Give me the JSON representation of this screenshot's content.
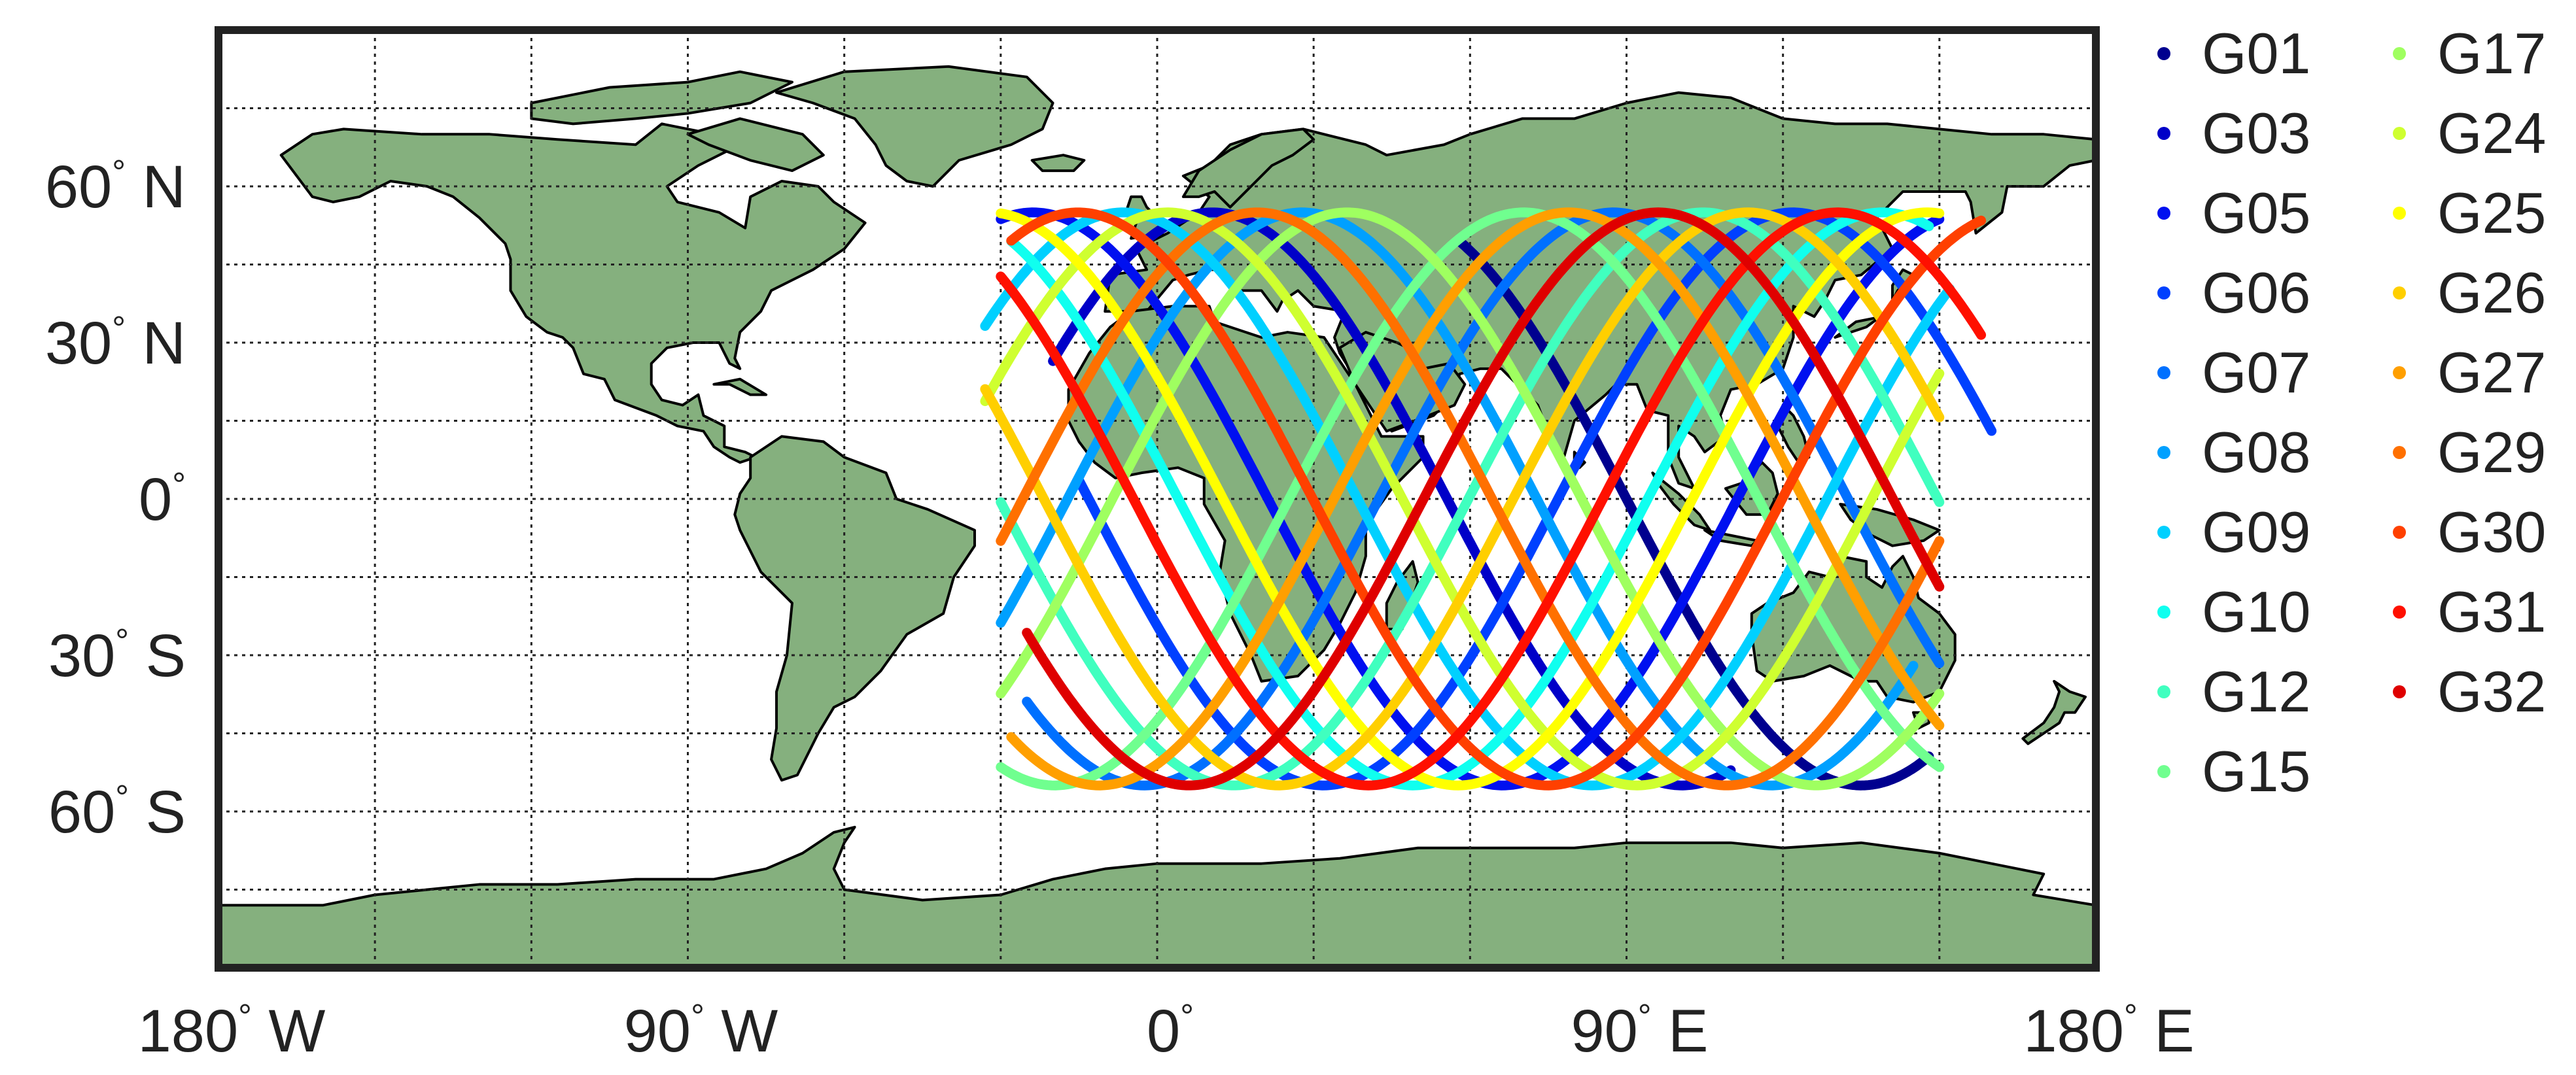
{
  "map": {
    "projection": "equirectangular",
    "lon_range": [
      -180,
      180
    ],
    "lat_range": [
      -90,
      90
    ],
    "grid": true,
    "grid_step_lon": 30,
    "grid_step_lat": 15,
    "land_color": "#85b07e",
    "frame_color": "#222222",
    "x_ticks": [
      {
        "value": -180,
        "num": "180",
        "sym": "°",
        "dir": "W"
      },
      {
        "value": -90,
        "num": "90",
        "sym": "°",
        "dir": "W"
      },
      {
        "value": 0,
        "num": "0",
        "sym": "°",
        "dir": ""
      },
      {
        "value": 90,
        "num": "90",
        "sym": "°",
        "dir": "E"
      },
      {
        "value": 180,
        "num": "180",
        "sym": "°",
        "dir": "E"
      }
    ],
    "y_ticks": [
      {
        "value": 60,
        "num": "60",
        "sym": "°",
        "dir": "N"
      },
      {
        "value": 30,
        "num": "30",
        "sym": "°",
        "dir": "N"
      },
      {
        "value": 0,
        "num": "0",
        "sym": "°",
        "dir": ""
      },
      {
        "value": -30,
        "num": "30",
        "sym": "°",
        "dir": "S"
      },
      {
        "value": -60,
        "num": "60",
        "sym": "°",
        "dir": "S"
      }
    ],
    "legend_position": "right",
    "legend_columns": 2
  },
  "chart_data": {
    "type": "line",
    "xlabel": "",
    "ylabel": "",
    "xlim": [
      -180,
      180
    ],
    "ylim": [
      -90,
      90
    ],
    "series": [
      {
        "name": "G01",
        "color": "#00008f",
        "start_lon": 58,
        "end_lon": 148,
        "amp": 55,
        "phase": 0.0,
        "period": 180
      },
      {
        "name": "G03",
        "color": "#0000c8",
        "start_lon": -20,
        "end_lon": 110,
        "amp": 55,
        "phase": 1.2,
        "period": 180
      },
      {
        "name": "G05",
        "color": "#0010f0",
        "start_lon": -30,
        "end_lon": 150,
        "amp": 55,
        "phase": 2.4,
        "period": 180
      },
      {
        "name": "G06",
        "color": "#0040ff",
        "start_lon": -15,
        "end_lon": 160,
        "amp": 55,
        "phase": 3.6,
        "period": 180
      },
      {
        "name": "G07",
        "color": "#0070ff",
        "start_lon": -25,
        "end_lon": 150,
        "amp": 55,
        "phase": 4.8,
        "period": 180
      },
      {
        "name": "G08",
        "color": "#00a0ff",
        "start_lon": -30,
        "end_lon": 145,
        "amp": 55,
        "phase": 0.6,
        "period": 180
      },
      {
        "name": "G09",
        "color": "#00d0ff",
        "start_lon": -33,
        "end_lon": 152,
        "amp": 55,
        "phase": 1.8,
        "period": 180
      },
      {
        "name": "G10",
        "color": "#10ffef",
        "start_lon": -28,
        "end_lon": 148,
        "amp": 55,
        "phase": 3.0,
        "period": 180
      },
      {
        "name": "G12",
        "color": "#40ffbf",
        "start_lon": -30,
        "end_lon": 150,
        "amp": 55,
        "phase": 4.2,
        "period": 180
      },
      {
        "name": "G15",
        "color": "#70ff8f",
        "start_lon": -30,
        "end_lon": 150,
        "amp": 55,
        "phase": 5.4,
        "period": 180
      },
      {
        "name": "G17",
        "color": "#9fff60",
        "start_lon": -30,
        "end_lon": 150,
        "amp": 55,
        "phase": 0.3,
        "period": 180
      },
      {
        "name": "G24",
        "color": "#cfff30",
        "start_lon": -33,
        "end_lon": 150,
        "amp": 55,
        "phase": 1.5,
        "period": 180
      },
      {
        "name": "G25",
        "color": "#ffff00",
        "start_lon": -30,
        "end_lon": 150,
        "amp": 55,
        "phase": 2.7,
        "period": 180
      },
      {
        "name": "G26",
        "color": "#ffcf00",
        "start_lon": -33,
        "end_lon": 150,
        "amp": 55,
        "phase": 3.9,
        "period": 180
      },
      {
        "name": "G27",
        "color": "#ff9f00",
        "start_lon": -28,
        "end_lon": 150,
        "amp": 55,
        "phase": 5.1,
        "period": 180
      },
      {
        "name": "G29",
        "color": "#ff7000",
        "start_lon": -30,
        "end_lon": 150,
        "amp": 55,
        "phase": 0.9,
        "period": 180
      },
      {
        "name": "G30",
        "color": "#ff4000",
        "start_lon": -28,
        "end_lon": 158,
        "amp": 55,
        "phase": 2.1,
        "period": 180
      },
      {
        "name": "G31",
        "color": "#ff1000",
        "start_lon": -30,
        "end_lon": 158,
        "amp": 55,
        "phase": 3.3,
        "period": 180
      },
      {
        "name": "G32",
        "color": "#df0000",
        "start_lon": -25,
        "end_lon": 150,
        "amp": 55,
        "phase": 4.5,
        "period": 180
      }
    ]
  }
}
